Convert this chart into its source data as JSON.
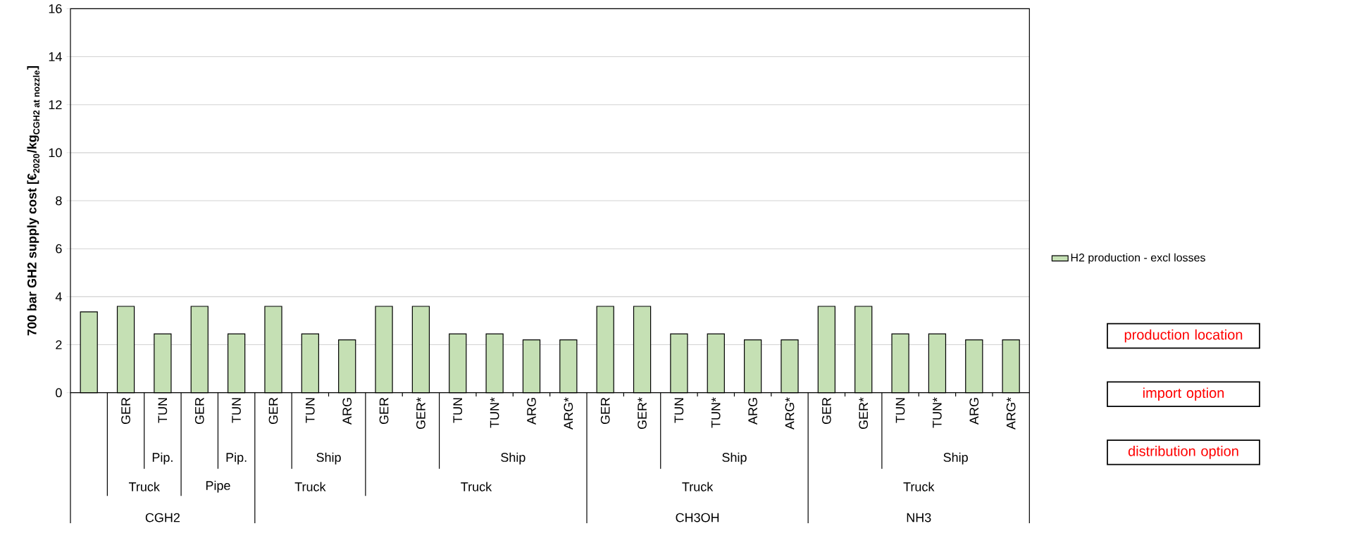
{
  "chart_data": {
    "type": "bar",
    "ylabel": "\\text{700 bar GH2 supply cost [€}_{\\text{2020}}\\text{/kg}_{\\text{CGH2 at nozzle}}\\text{]}",
    "categories": [
      null,
      "GER",
      "TUN",
      "GER",
      "TUN",
      "GER",
      "TUN",
      "ARG",
      "GER",
      "GER*",
      "TUN",
      "TUN*",
      "ARG",
      "ARG*",
      "GER",
      "GER*",
      "TUN",
      "TUN*",
      "ARG",
      "ARG*",
      "GER",
      "GER*",
      "TUN",
      "TUN*",
      "ARG",
      "ARG*"
    ],
    "series": [
      {
        "name": "H2 production - excl losses",
        "color": "#c5e0b4",
        "values": [
          3.37,
          3.6,
          2.45,
          3.6,
          2.45,
          3.6,
          2.45,
          2.2,
          3.6,
          3.6,
          2.45,
          2.45,
          2.2,
          2.2,
          3.6,
          3.6,
          2.45,
          2.45,
          2.2,
          2.2,
          3.6,
          3.6,
          2.45,
          2.45,
          2.2,
          2.2
        ]
      }
    ],
    "ylim": [
      0,
      16
    ],
    "yticks": [
      0,
      2,
      4,
      6,
      8,
      10,
      12,
      14,
      16
    ],
    "grid": "y",
    "legend": "right",
    "annotations": [
      "Pip.",
      "Pip.",
      "Ship",
      "Ship",
      "Ship",
      "Ship",
      "Truck",
      "Pipe",
      "Truck",
      "Truck",
      "Truck",
      "Truck",
      "CGH2",
      "CH3OH",
      "NH3",
      "production location",
      "import option",
      "distribution option"
    ]
  }
}
